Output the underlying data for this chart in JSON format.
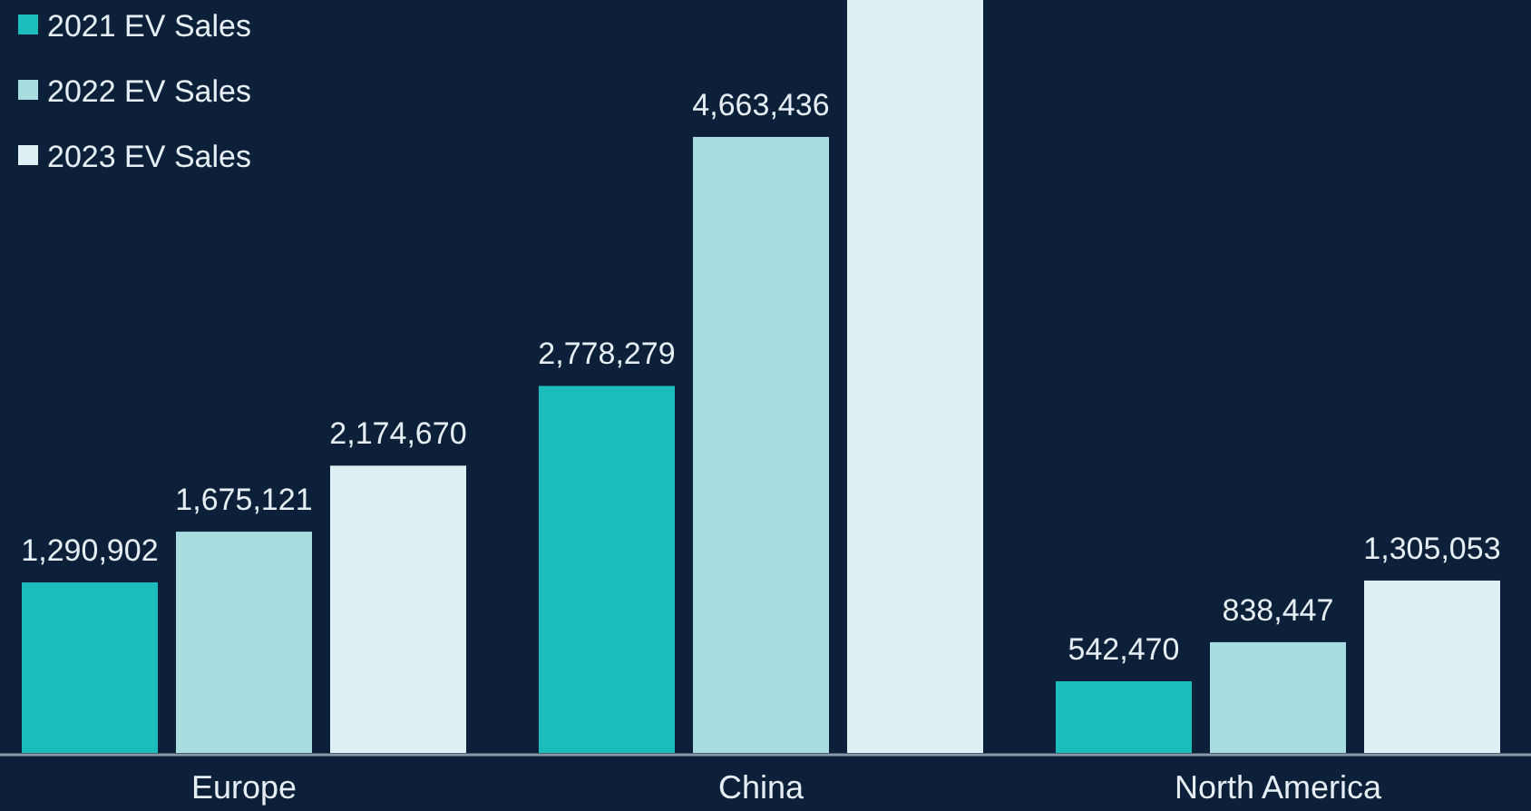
{
  "chart_data": {
    "type": "bar",
    "categories": [
      "Europe",
      "China",
      "North America"
    ],
    "series": [
      {
        "name": "2021 EV Sales",
        "color": "#1abcbc",
        "values": [
          1290902,
          2778279,
          542470
        ],
        "value_labels": [
          "1,290,902",
          "2,778,279",
          "542,470"
        ]
      },
      {
        "name": "2022 EV Sales",
        "color": "#a8dce0",
        "values": [
          1675121,
          4663436,
          838447
        ],
        "value_labels": [
          "1,675,121",
          "4,663,436",
          "838,447"
        ]
      },
      {
        "name": "2023 EV Sales",
        "color": "#dff0f4",
        "values": [
          2174670,
          5700000,
          1305053
        ],
        "value_labels": [
          "2,174,670",
          null,
          "1,305,053"
        ]
      }
    ],
    "ylim": [
      0,
      5700000
    ],
    "legend": "top left",
    "grid": false
  }
}
